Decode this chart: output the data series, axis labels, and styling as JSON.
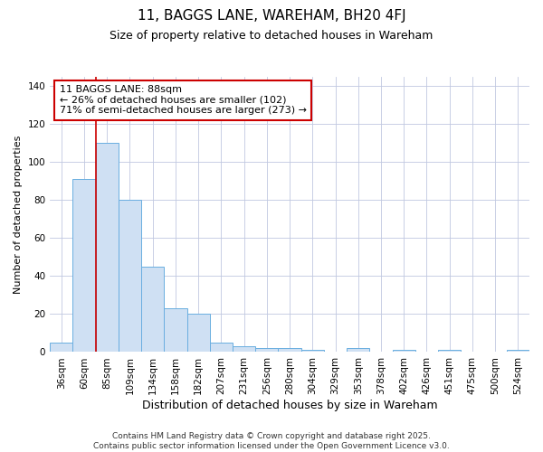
{
  "title": "11, BAGGS LANE, WAREHAM, BH20 4FJ",
  "subtitle": "Size of property relative to detached houses in Wareham",
  "xlabel": "Distribution of detached houses by size in Wareham",
  "ylabel": "Number of detached properties",
  "categories": [
    "36sqm",
    "60sqm",
    "85sqm",
    "109sqm",
    "134sqm",
    "158sqm",
    "182sqm",
    "207sqm",
    "231sqm",
    "256sqm",
    "280sqm",
    "304sqm",
    "329sqm",
    "353sqm",
    "378sqm",
    "402sqm",
    "426sqm",
    "451sqm",
    "475sqm",
    "500sqm",
    "524sqm"
  ],
  "values": [
    5,
    91,
    110,
    80,
    45,
    23,
    20,
    5,
    3,
    2,
    2,
    1,
    0,
    2,
    0,
    1,
    0,
    1,
    0,
    0,
    1
  ],
  "bar_color": "#cfe0f3",
  "bar_edge_color": "#6aaee0",
  "vline_x_index": 2,
  "vline_color": "#cc0000",
  "annotation_text": "11 BAGGS LANE: 88sqm\n← 26% of detached houses are smaller (102)\n71% of semi-detached houses are larger (273) →",
  "annotation_box_facecolor": "#ffffff",
  "annotation_box_edgecolor": "#cc0000",
  "ylim": [
    0,
    145
  ],
  "yticks": [
    0,
    20,
    40,
    60,
    80,
    100,
    120,
    140
  ],
  "footer_text": "Contains HM Land Registry data © Crown copyright and database right 2025.\nContains public sector information licensed under the Open Government Licence v3.0.",
  "background_color": "#ffffff",
  "plot_bg_color": "#ffffff",
  "grid_color": "#c0c8e0",
  "title_fontsize": 11,
  "subtitle_fontsize": 9,
  "xlabel_fontsize": 9,
  "ylabel_fontsize": 8,
  "tick_fontsize": 7.5,
  "annotation_fontsize": 8,
  "footer_fontsize": 6.5
}
